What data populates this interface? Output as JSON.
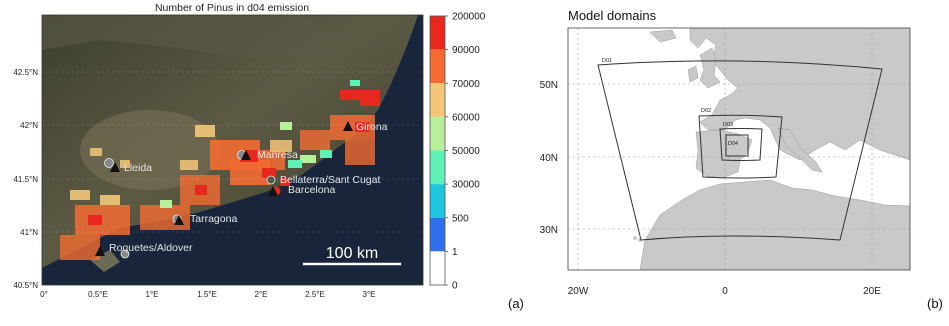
{
  "panel_a": {
    "title": "Number of Pinus in d04 emission",
    "lat_ticks": [
      "42.5°N",
      "42°N",
      "41.5°N",
      "41°N",
      "40.5°N"
    ],
    "lon_ticks": [
      "0°",
      "0.5°E",
      "1°E",
      "1.5°E",
      "2°E",
      "2.5°E",
      "3°E"
    ],
    "cities": [
      {
        "name": "Girona",
        "kind": "triangle"
      },
      {
        "name": "Manresa",
        "kind": "triangle"
      },
      {
        "name": "Lleida",
        "kind": "triangle"
      },
      {
        "name": "Bellaterra/Sant Cugat",
        "kind": "circle"
      },
      {
        "name": "Barcelona",
        "kind": "triangle"
      },
      {
        "name": "Tarragona",
        "kind": "triangle"
      },
      {
        "name": "Roquetes/Aldover",
        "kind": "triangle"
      }
    ],
    "scale_label": "100 km",
    "colorbar": {
      "labels": [
        "200000",
        "90000",
        "70000",
        "60000",
        "50000",
        "30000",
        "500",
        "1",
        "0"
      ],
      "colors": [
        "#e8281e",
        "#f26b32",
        "#f3c678",
        "#b6f09a",
        "#5ef0b4",
        "#1cc6dc",
        "#2f6fea",
        "#ffffff"
      ]
    },
    "panel_label": "(a)"
  },
  "panel_b": {
    "title": "Model domains",
    "lat_ticks": [
      "50N",
      "40N",
      "30N"
    ],
    "lon_ticks": [
      "20W",
      "0",
      "20E"
    ],
    "domains": [
      "D01",
      "D02",
      "D03",
      "D04"
    ],
    "panel_label": "(b)"
  },
  "colors": {
    "map_base": "#4a4d3a",
    "sea": "#18253a",
    "land_gray": "#c9c9c9",
    "ocean": "#ffffff"
  }
}
